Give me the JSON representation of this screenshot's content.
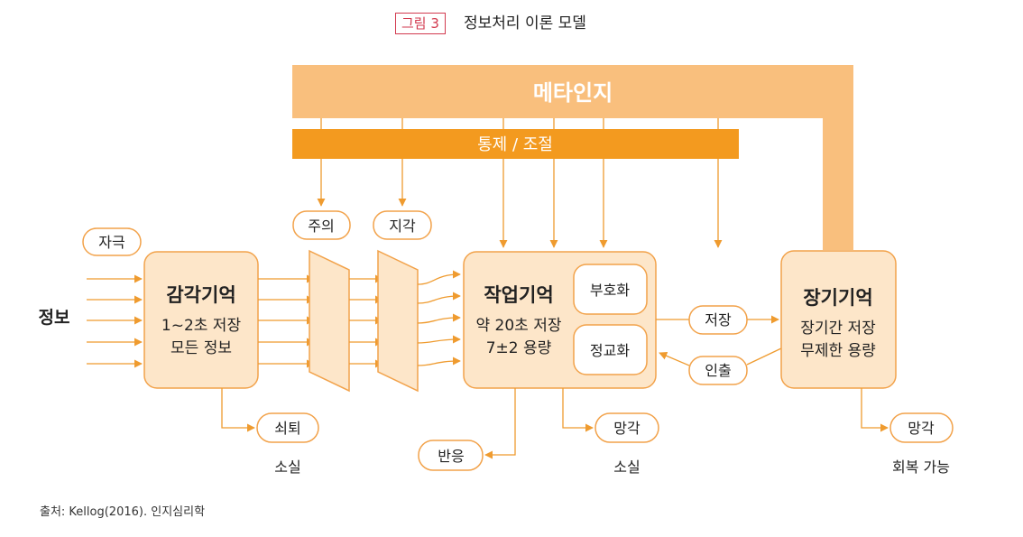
{
  "header": {
    "figure_label": "그림 3",
    "title": "정보처리 이론 모델"
  },
  "diagram": {
    "metacognition": "메타인지",
    "control": "통제 / 조절",
    "attention": "주의",
    "perception": "지각",
    "stimulus": "자극",
    "information": "정보",
    "sensory_memory": {
      "title": "감각기억",
      "line1": "1~2초 저장",
      "line2": "모든 정보"
    },
    "working_memory": {
      "title": "작업기억",
      "line1": "약 20초 저장",
      "line2": "7±2 용량"
    },
    "encoding": "부호화",
    "elaboration": "정교화",
    "long_term_memory": {
      "title": "장기기억",
      "line1": "장기간 저장",
      "line2": "무제한 용량"
    },
    "store": "저장",
    "retrieve": "인출",
    "decay": "쇠퇴",
    "response": "반응",
    "forgetting_working": "망각",
    "forgetting_long": "망각",
    "loss_sensory": "소실",
    "loss_working": "소실",
    "recoverable": "회복 가능"
  },
  "footer": {
    "source": "출처: Kellog(2016). 인지심리학"
  },
  "colors": {
    "meta_band": "#f9bf7d",
    "control_bar": "#f39a1f",
    "box_fill": "#fde6c9",
    "box_stroke": "#f2a24a",
    "arrow": "#ef9b2f",
    "accent_label": "#d23a4f"
  }
}
